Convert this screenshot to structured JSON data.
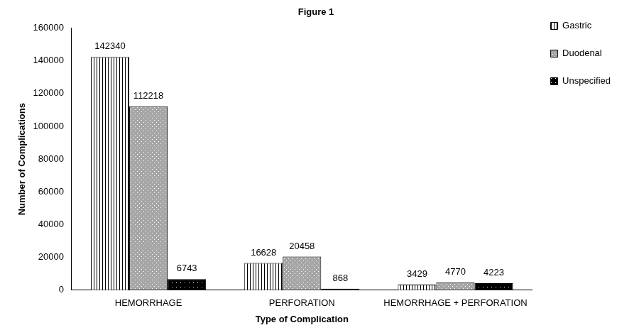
{
  "chart_data": {
    "type": "bar",
    "title": "Figure 1",
    "x_label": "Type of Complication",
    "y_label": "Number of Complications",
    "categories": [
      "HEMORRHAGE",
      "PERFORATION",
      "HEMORRHAGE + PERFORATION"
    ],
    "series": [
      {
        "name": "Gastric",
        "color": "#ffffff",
        "values": [
          142340,
          16628,
          3429
        ]
      },
      {
        "name": "Duodenal",
        "color": "#a6a6a6",
        "values": [
          112218,
          20458,
          4770
        ]
      },
      {
        "name": "Unspecified",
        "color": "#000000",
        "values": [
          6743,
          868,
          4223
        ]
      }
    ],
    "ylim": [
      0,
      160000
    ],
    "yticks": [
      0,
      20000,
      40000,
      60000,
      80000,
      100000,
      120000,
      140000,
      160000
    ],
    "grid": false,
    "legend": "right",
    "data_labels": true
  }
}
